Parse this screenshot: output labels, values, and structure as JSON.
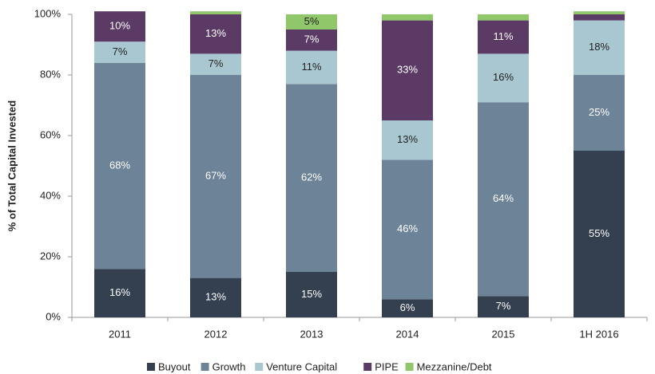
{
  "chart_data": {
    "type": "stacked_bar",
    "y_label": "% of Total Capital Invested",
    "categories": [
      "2011",
      "2012",
      "2013",
      "2014",
      "2015",
      "1H 2016"
    ],
    "series": [
      {
        "name": "Buyout",
        "color": "#344050",
        "values": [
          16,
          13,
          15,
          6,
          7,
          55
        ],
        "value_labels": [
          "16%",
          "13%",
          "15%",
          "6%",
          "7%",
          "55%"
        ]
      },
      {
        "name": "Growth",
        "color": "#6d8398",
        "values": [
          68,
          67,
          62,
          46,
          64,
          25
        ],
        "value_labels": [
          "68%",
          "67%",
          "62%",
          "46%",
          "64%",
          "25%"
        ]
      },
      {
        "name": "Venture Capital",
        "color": "#a9c7d1",
        "values": [
          7,
          7,
          11,
          13,
          16,
          18
        ],
        "value_labels": [
          "7%",
          "7%",
          "11%",
          "13%",
          "16%",
          "18%"
        ]
      },
      {
        "name": "PIPE",
        "color": "#5b3a66",
        "values": [
          10,
          13,
          7,
          33,
          11,
          2
        ],
        "value_labels": [
          "10%",
          "13%",
          "7%",
          "33%",
          "11%",
          null
        ]
      },
      {
        "name": "Mezzanine/Debt",
        "color": "#8fc76a",
        "values": [
          0,
          1,
          5,
          2,
          2,
          1
        ],
        "value_labels": [
          null,
          null,
          "5%",
          null,
          null,
          null
        ]
      }
    ],
    "ylim": [
      0,
      100
    ],
    "yticks": [
      {
        "value": 0,
        "label": "0%"
      },
      {
        "value": 20,
        "label": "20%"
      },
      {
        "value": 40,
        "label": "40%"
      },
      {
        "value": 60,
        "label": "60%"
      },
      {
        "value": 80,
        "label": "80%"
      },
      {
        "value": 100,
        "label": "100%"
      }
    ],
    "legend": "bottom"
  }
}
